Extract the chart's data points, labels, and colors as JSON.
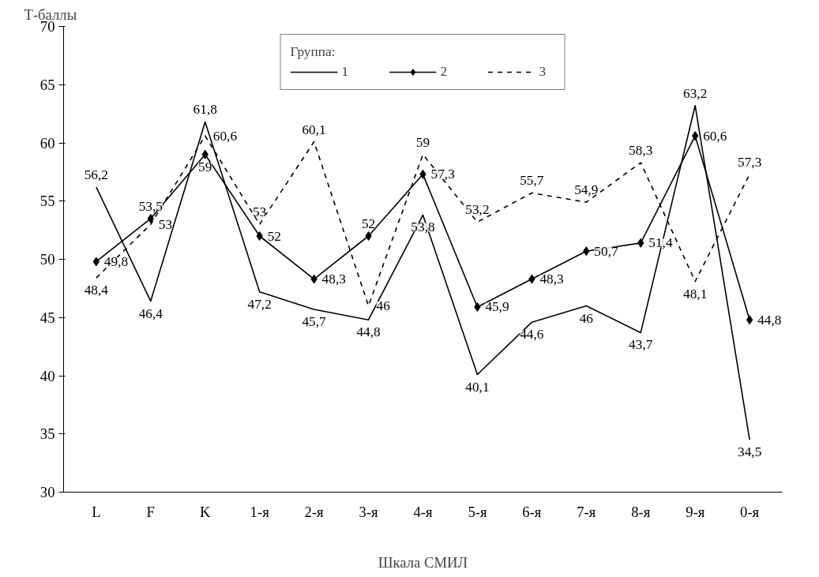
{
  "chart_data": {
    "type": "line",
    "xlabel": "Шкала СМИЛ",
    "ylabel": "Т-баллы",
    "legend_title": "Группа:",
    "legend": "top",
    "categories": [
      "L",
      "F",
      "K",
      "1-я",
      "2-я",
      "3-я",
      "4-я",
      "5-я",
      "6-я",
      "7-я",
      "8-я",
      "9-я",
      "0-я"
    ],
    "ylim": [
      30,
      70
    ],
    "yticks": [
      30,
      35,
      40,
      45,
      50,
      55,
      60,
      65,
      70
    ],
    "grid": false,
    "series": [
      {
        "name": "1",
        "color": "#000000",
        "line_style": "solid",
        "marker": "none",
        "values": [
          56.2,
          46.4,
          61.8,
          47.2,
          45.7,
          44.8,
          53.8,
          40.1,
          44.6,
          46,
          43.7,
          63.2,
          34.5
        ],
        "value_labels": [
          "56,2",
          "46,4",
          "61,8",
          "47,2",
          "45,7",
          "44,8",
          "53,8",
          "40,1",
          "44,6",
          "46",
          "43,7",
          "63,2",
          "34,5"
        ]
      },
      {
        "name": "2",
        "color": "#000000",
        "line_style": "solid",
        "marker": "diamond",
        "values": [
          49.8,
          53.5,
          59,
          52,
          48.3,
          52,
          57.3,
          45.9,
          48.3,
          50.7,
          51.4,
          60.6,
          44.8
        ],
        "value_labels": [
          "49,8",
          "53,5",
          "59",
          "52",
          "48,3",
          "52",
          "57,3",
          "45,9",
          "48,3",
          "50,7",
          "51,4",
          "60,6",
          "44,8"
        ]
      },
      {
        "name": "3",
        "color": "#000000",
        "line_style": "dashed",
        "marker": "none",
        "values": [
          48.4,
          53,
          60.6,
          53,
          60.1,
          46,
          59,
          53.2,
          55.7,
          54.9,
          58.3,
          48.1,
          57.3
        ],
        "value_labels": [
          "48,4",
          "53",
          "60,6",
          "53",
          "60,1",
          "46",
          "59",
          "53,2",
          "55,7",
          "54,9",
          "58,3",
          "48,1",
          "57,3"
        ]
      }
    ]
  }
}
